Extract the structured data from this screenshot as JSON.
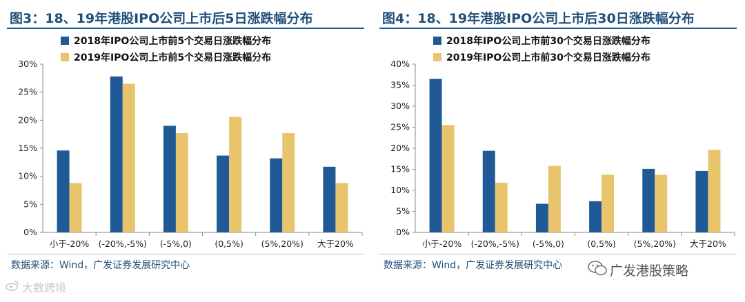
{
  "colors": {
    "series_2018": "#1f5a96",
    "series_2019": "#e8c56d",
    "title": "#1f4e79"
  },
  "chart_data": [
    {
      "type": "bar",
      "title": "图3：18、19年港股IPO公司上市后5日涨跌幅分布",
      "categories": [
        "小于-20%",
        "(-20%,-5%)",
        "(-5%,0)",
        "(0,5%)",
        "(5%,20%)",
        "大于20%"
      ],
      "series": [
        {
          "name": "2018年IPO公司上市前5个交易日涨跌幅分布",
          "values": [
            14.6,
            27.8,
            19.0,
            13.7,
            13.2,
            11.7
          ]
        },
        {
          "name": "2019年IPO公司上市前5个交易日涨跌幅分布",
          "values": [
            8.8,
            26.5,
            17.7,
            20.6,
            17.7,
            8.8
          ]
        }
      ],
      "ylim": [
        0,
        30
      ],
      "yticks": [
        "0%",
        "5%",
        "10%",
        "15%",
        "20%",
        "25%",
        "30%"
      ],
      "xlabel": "",
      "ylabel": "",
      "legend": "top-left",
      "source": "数据来源：Wind，广发证券发展研究中心"
    },
    {
      "type": "bar",
      "title": "图4：18、19年港股IPO公司上市后30日涨跌幅分布",
      "categories": [
        "小于-20%",
        "(-20%,-5%)",
        "(-5%,0)",
        "(0,5%)",
        "(5%,20%)",
        "大于20%"
      ],
      "series": [
        {
          "name": "2018年IPO公司上市前30个交易日涨跌幅分布",
          "values": [
            36.5,
            19.4,
            6.8,
            7.4,
            15.1,
            14.6
          ]
        },
        {
          "name": "2019年IPO公司上市前30个交易日涨跌幅分布",
          "values": [
            25.5,
            11.8,
            15.8,
            13.7,
            13.7,
            19.6
          ]
        }
      ],
      "ylim": [
        0,
        40
      ],
      "yticks": [
        "0%",
        "5%",
        "10%",
        "15%",
        "20%",
        "25%",
        "30%",
        "35%",
        "40%"
      ],
      "xlabel": "",
      "ylabel": "",
      "legend": "top-left",
      "source": "数据来源：Wind，广发证券发展研究中心"
    }
  ],
  "watermarks": {
    "left": "大数跨境",
    "right": "广发港股策略"
  }
}
